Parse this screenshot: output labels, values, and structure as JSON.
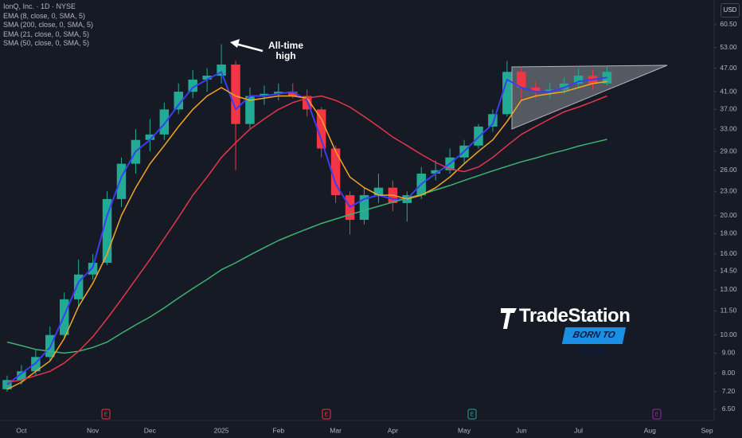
{
  "chart_data": {
    "type": "candlestick",
    "title": "IonQ, Inc. · 1D · NYSE",
    "currency": "USD",
    "categories": [
      null,
      "Oct",
      null,
      null,
      null,
      null,
      "Nov",
      null,
      null,
      null,
      "Dec",
      null,
      null,
      null,
      null,
      "2025",
      null,
      null,
      null,
      "Feb",
      null,
      null,
      null,
      "Mar",
      null,
      null,
      null,
      "Apr",
      null,
      null,
      null,
      null,
      "May",
      null,
      null,
      null,
      "Jun",
      null,
      null,
      null,
      "Jul",
      null,
      null,
      null,
      null,
      "Aug",
      null,
      null,
      null,
      "Sep"
    ],
    "open": [
      7.3,
      7.7,
      8.1,
      8.8,
      10.0,
      12.3,
      14.2,
      15.2,
      22.0,
      27.0,
      31.0,
      32.0,
      37.0,
      41.0,
      44.0,
      45.0,
      48.0,
      34.0,
      40.0,
      40.5,
      41.0,
      40.0,
      37.0,
      29.5,
      22.5,
      19.5,
      22.5,
      23.5,
      21.5,
      22.5,
      25.5,
      26.0,
      28.0,
      30.0,
      33.5,
      36.0,
      46.0,
      42.0,
      41.0,
      41.5,
      43.0,
      45.0,
      43.0,
      null,
      null,
      null,
      null,
      null,
      null,
      null
    ],
    "high": [
      7.9,
      8.4,
      9.2,
      10.5,
      12.8,
      15.5,
      16.0,
      23.0,
      28.0,
      33.0,
      35.0,
      38.5,
      43.0,
      46.5,
      47.0,
      54.0,
      49.0,
      42.0,
      42.5,
      43.0,
      43.0,
      41.5,
      37.5,
      30.0,
      23.0,
      23.5,
      25.5,
      24.5,
      23.0,
      26.5,
      27.5,
      29.5,
      31.0,
      34.0,
      37.0,
      49.0,
      47.5,
      43.5,
      43.0,
      44.5,
      47.0,
      46.5,
      47.5,
      null,
      null,
      null,
      null,
      null,
      null,
      null
    ],
    "low": [
      7.2,
      7.5,
      7.9,
      8.6,
      9.8,
      11.8,
      13.8,
      15.0,
      21.0,
      25.5,
      29.0,
      31.0,
      36.0,
      39.5,
      41.0,
      43.0,
      26.0,
      33.0,
      38.0,
      39.0,
      39.5,
      35.5,
      28.0,
      21.5,
      17.9,
      19.0,
      21.5,
      20.5,
      19.3,
      22.0,
      24.5,
      25.5,
      27.0,
      29.5,
      32.5,
      35.5,
      39.0,
      39.5,
      39.5,
      40.5,
      42.0,
      41.5,
      42.5,
      null,
      null,
      null,
      null,
      null,
      null,
      null
    ],
    "close": [
      7.7,
      8.1,
      8.8,
      10.0,
      12.3,
      14.2,
      15.2,
      22.0,
      27.0,
      31.0,
      32.0,
      37.0,
      41.0,
      44.0,
      45.0,
      48.0,
      34.0,
      40.0,
      40.5,
      41.0,
      40.0,
      37.0,
      29.5,
      22.5,
      19.5,
      22.5,
      23.5,
      21.5,
      22.5,
      25.5,
      26.0,
      28.0,
      30.0,
      33.5,
      36.0,
      46.0,
      42.0,
      41.0,
      41.5,
      43.0,
      45.0,
      43.0,
      46.0,
      null,
      null,
      null,
      null,
      null,
      null,
      null
    ],
    "up_color": "#22ab94",
    "down_color": "#f23645",
    "series": [
      {
        "name": "EMA (8, close, 0, SMA, 5)",
        "color": "#3d3df0",
        "values": [
          7.5,
          8,
          8.5,
          9.3,
          11.2,
          13.6,
          14.8,
          20,
          25,
          29,
          31,
          34,
          38,
          42,
          44,
          46,
          37,
          40,
          40,
          40.5,
          41,
          39,
          31,
          24,
          21,
          22,
          22.5,
          22,
          22,
          24,
          25.5,
          27,
          29,
          31.5,
          34,
          44,
          42,
          41,
          41,
          42,
          43.5,
          44,
          44.5,
          null,
          null,
          null,
          null,
          null,
          null,
          null
        ]
      },
      {
        "name": "SMA (200, close, 0, SMA, 5)",
        "color": "#3cb371",
        "values": [
          9.6,
          9.4,
          9.2,
          9.1,
          9.0,
          9.1,
          9.3,
          9.6,
          10.1,
          10.6,
          11.1,
          11.7,
          12.4,
          13.1,
          13.8,
          14.6,
          15.2,
          15.9,
          16.6,
          17.3,
          17.9,
          18.5,
          19.1,
          19.6,
          20.1,
          20.6,
          21.1,
          21.6,
          22.1,
          22.6,
          23.2,
          23.8,
          24.5,
          25.2,
          25.9,
          26.6,
          27.3,
          27.9,
          28.6,
          29.2,
          29.9,
          30.5,
          31.1,
          null,
          null,
          null,
          null,
          null,
          null,
          null
        ]
      },
      {
        "name": "EMA (21, close, 0, SMA, 5)",
        "color": "#f5a623",
        "values": [
          7.3,
          7.6,
          8.1,
          8.6,
          9.8,
          11.8,
          13.5,
          16,
          20,
          23.5,
          27,
          30,
          33.5,
          37,
          40,
          42,
          40,
          39,
          39.5,
          40,
          40,
          39.5,
          35,
          29,
          25,
          23.5,
          22.5,
          22.5,
          22,
          22.5,
          23.5,
          25,
          27,
          29,
          31,
          34.5,
          39,
          40,
          40.5,
          41,
          42,
          43,
          43.5,
          null,
          null,
          null,
          null,
          null,
          null,
          null
        ]
      },
      {
        "name": "SMA (50, close, 0, SMA, 5)",
        "color": "#e5354a",
        "values": [
          7.6,
          7.7,
          7.9,
          8.1,
          8.5,
          9.1,
          9.9,
          11.0,
          12.3,
          13.8,
          15.5,
          17.5,
          19.8,
          22.5,
          25,
          28,
          30.5,
          33,
          35,
          37,
          38.5,
          39.5,
          40,
          39,
          37.5,
          35.5,
          33.5,
          31.5,
          30,
          28.5,
          27.2,
          26.2,
          25.8,
          26.5,
          28,
          30,
          32,
          33.5,
          35,
          36.5,
          37.5,
          38.7,
          40,
          null,
          null,
          null,
          null,
          null,
          null,
          null
        ]
      }
    ],
    "log_scale": true,
    "ylim": [
      6.09,
      69.8
    ],
    "yticks": [
      {
        "value": 60.5,
        "label": "60.50"
      },
      {
        "value": 53,
        "label": "53.00"
      },
      {
        "value": 47,
        "label": "47.00"
      },
      {
        "value": 41,
        "label": "41.00"
      },
      {
        "value": 37,
        "label": "37.00"
      },
      {
        "value": 33,
        "label": "33.00"
      },
      {
        "value": 29,
        "label": "29.00"
      },
      {
        "value": 26,
        "label": "26.00"
      },
      {
        "value": 23,
        "label": "23.00"
      },
      {
        "value": 20,
        "label": "20.00"
      },
      {
        "value": 18,
        "label": "18.00"
      },
      {
        "value": 16,
        "label": "16.00"
      },
      {
        "value": 14.5,
        "label": "14.50"
      },
      {
        "value": 13,
        "label": "13.00"
      },
      {
        "value": 11.5,
        "label": "11.50"
      },
      {
        "value": 10,
        "label": "10.00"
      },
      {
        "value": 9,
        "label": "9.00"
      },
      {
        "value": 8,
        "label": "8.00"
      },
      {
        "value": 7.2,
        "label": "7.20"
      },
      {
        "value": 6.5,
        "label": "6.50"
      }
    ],
    "grid": false,
    "annotation": "All-time high",
    "earnings_marker": "E"
  },
  "branding": {
    "logo": "TradeStation",
    "tagline": "BORN TO TRADE"
  }
}
